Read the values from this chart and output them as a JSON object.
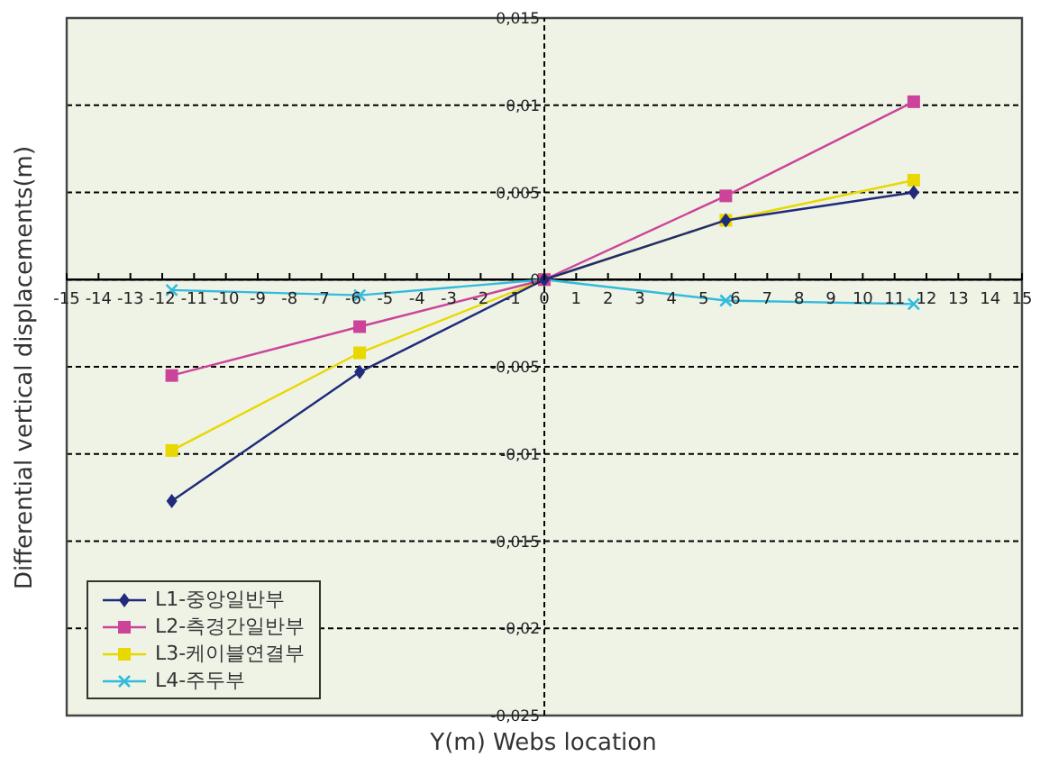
{
  "chart_data": {
    "type": "line",
    "xlabel": "Y(m) Webs location",
    "ylabel": "Differential vertical displacements(m)",
    "xlim": [
      -15,
      15
    ],
    "xticks": [
      -15,
      -14,
      -13,
      -12,
      -11,
      -10,
      -9,
      -8,
      -7,
      -6,
      -5,
      -4,
      -3,
      -2,
      -1,
      0,
      1,
      2,
      3,
      4,
      5,
      6,
      7,
      8,
      9,
      10,
      11,
      12,
      13,
      14,
      15
    ],
    "ylim": [
      -0.025,
      0.015
    ],
    "yticks": [
      {
        "value": -0.025,
        "label": "-0,025"
      },
      {
        "value": -0.02,
        "label": "-0,02"
      },
      {
        "value": -0.015,
        "label": "-0,015"
      },
      {
        "value": -0.01,
        "label": "-0,01"
      },
      {
        "value": -0.005,
        "label": "-0,005"
      },
      {
        "value": 0,
        "label": "0"
      },
      {
        "value": 0.005,
        "label": "0,005"
      },
      {
        "value": 0.01,
        "label": "0,01"
      },
      {
        "value": 0.015,
        "label": "0,015"
      }
    ],
    "grid": "y",
    "legend": "bottom left",
    "ref_lines": [
      {
        "axis": "x",
        "value": 0,
        "color": "#000000",
        "line_style": "dashed"
      }
    ],
    "x": [
      -11.7,
      -5.8,
      0,
      5.7,
      11.6
    ],
    "series": [
      {
        "name": "L1-중앙일반부",
        "color": "#1f2a7a",
        "marker": "diamond",
        "values": [
          -0.0127,
          -0.0053,
          0,
          0.0034,
          0.005
        ]
      },
      {
        "name": "L2-측경간일반부",
        "color": "#cc4499",
        "marker": "square",
        "values": [
          -0.0055,
          -0.0027,
          0,
          0.0048,
          0.0102
        ]
      },
      {
        "name": "L3-케이블연결부",
        "color": "#e8d800",
        "marker": "square",
        "values": [
          -0.0098,
          -0.0042,
          0,
          0.0034,
          0.0057
        ]
      },
      {
        "name": "L4-주두부",
        "color": "#33bbdd",
        "marker": "cross",
        "values": [
          -0.0006,
          -0.0009,
          0,
          -0.0012,
          -0.0014
        ]
      }
    ]
  }
}
